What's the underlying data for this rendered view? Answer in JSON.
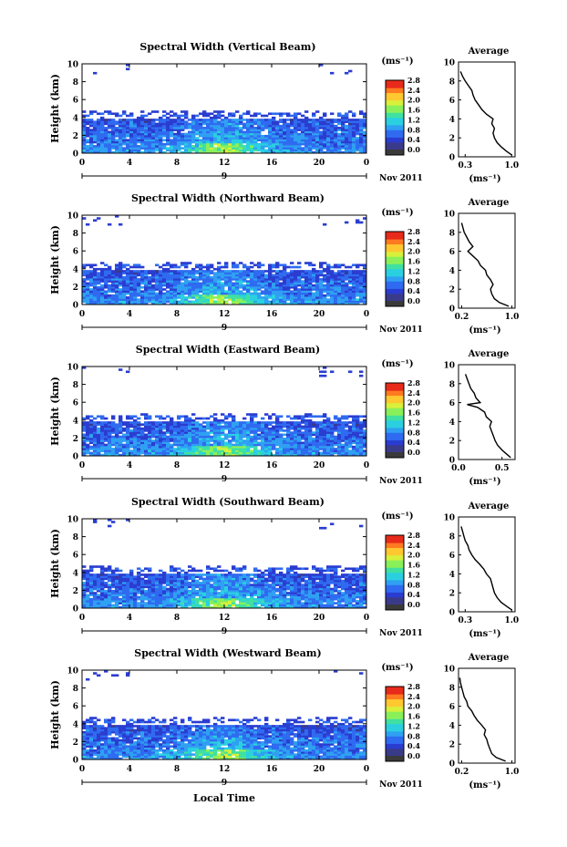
{
  "figure": {
    "xlabel": "Local Time",
    "day_label": "9",
    "date_label": "Nov 2011",
    "xticks": [
      "0",
      "4",
      "8",
      "12",
      "16",
      "20",
      "0"
    ],
    "yticks": [
      "0",
      "2",
      "4",
      "6",
      "8",
      "10"
    ],
    "ylabel": "Height (km)",
    "colorbar_unit": "(ms⁻¹)",
    "colorbar_ticks": [
      "0.0",
      "0.4",
      "0.8",
      "1.2",
      "1.6",
      "2.0",
      "2.4",
      "2.8"
    ],
    "colorbar_colors": [
      "#3a3a8a",
      "#2a3dd0",
      "#2f6bf0",
      "#2fa0f2",
      "#2ad0e0",
      "#40e0a0",
      "#8af05a",
      "#d8f03a",
      "#ffc830",
      "#ff7a20",
      "#e82a1a"
    ],
    "avg_title": "Average",
    "avg_xlabel": "(ms⁻¹)"
  },
  "chart_data": [
    {
      "type": "heatmap",
      "title": "Spectral Width (Vertical Beam)",
      "xlim": [
        0,
        24
      ],
      "ylim": [
        0,
        10
      ],
      "profile": {
        "title": "Average",
        "xticks": [
          "0.3",
          "1.0"
        ],
        "xlim": [
          0.2,
          1.05
        ],
        "heights": [
          0.2,
          0.6,
          1.0,
          1.5,
          2.0,
          2.5,
          3.0,
          3.5,
          4.0,
          4.5,
          5.0,
          5.5,
          6.0,
          6.5,
          7.0,
          7.5,
          8.0,
          8.5,
          9.0
        ],
        "values": [
          1.0,
          0.92,
          0.85,
          0.78,
          0.74,
          0.72,
          0.74,
          0.7,
          0.72,
          0.62,
          0.55,
          0.5,
          0.45,
          0.42,
          0.4,
          0.35,
          0.3,
          0.26,
          0.23
        ]
      }
    },
    {
      "type": "heatmap",
      "title": "Spectral Width (Northward Beam)",
      "xlim": [
        0,
        24
      ],
      "ylim": [
        0,
        10
      ],
      "profile": {
        "title": "Average",
        "xticks": [
          "0.2",
          "1.0"
        ],
        "xlim": [
          0.15,
          1.05
        ],
        "heights": [
          0.2,
          0.6,
          1.0,
          1.5,
          2.0,
          2.5,
          3.0,
          3.5,
          4.0,
          4.5,
          5.0,
          5.5,
          6.0,
          6.5,
          7.0,
          7.5,
          8.0,
          8.5,
          9.0
        ],
        "values": [
          0.95,
          0.8,
          0.72,
          0.68,
          0.66,
          0.7,
          0.66,
          0.6,
          0.58,
          0.5,
          0.46,
          0.38,
          0.3,
          0.38,
          0.32,
          0.28,
          0.24,
          0.22,
          0.2
        ]
      }
    },
    {
      "type": "heatmap",
      "title": "Spectral Width (Eastward Beam)",
      "xlim": [
        0,
        24
      ],
      "ylim": [
        0,
        10
      ],
      "profile": {
        "title": "Average",
        "xticks": [
          "0.0",
          "0.5"
        ],
        "xlim": [
          0.0,
          0.65
        ],
        "heights": [
          0.2,
          0.6,
          1.0,
          1.5,
          2.0,
          2.5,
          3.0,
          3.5,
          4.0,
          4.5,
          5.0,
          5.5,
          5.8,
          6.0,
          6.5,
          7.0,
          7.5,
          8.0,
          8.5,
          9.0
        ],
        "values": [
          0.6,
          0.55,
          0.5,
          0.45,
          0.42,
          0.4,
          0.38,
          0.36,
          0.38,
          0.32,
          0.3,
          0.22,
          0.1,
          0.25,
          0.2,
          0.18,
          0.14,
          0.12,
          0.1,
          0.08
        ]
      }
    },
    {
      "type": "heatmap",
      "title": "Spectral Width (Southward Beam)",
      "xlim": [
        0,
        24
      ],
      "ylim": [
        0,
        10
      ],
      "profile": {
        "title": "Average",
        "xticks": [
          "0.3",
          "1.0"
        ],
        "xlim": [
          0.2,
          1.05
        ],
        "heights": [
          0.2,
          0.6,
          1.0,
          1.5,
          2.0,
          2.5,
          3.0,
          3.5,
          4.0,
          4.5,
          5.0,
          5.5,
          6.0,
          6.5,
          7.0,
          7.5,
          8.0,
          8.5,
          9.0
        ],
        "values": [
          1.0,
          0.92,
          0.84,
          0.78,
          0.74,
          0.72,
          0.7,
          0.68,
          0.62,
          0.58,
          0.52,
          0.45,
          0.4,
          0.36,
          0.34,
          0.3,
          0.28,
          0.26,
          0.24
        ]
      }
    },
    {
      "type": "heatmap",
      "title": "Spectral Width (Westward Beam)",
      "xlim": [
        0,
        24
      ],
      "ylim": [
        0,
        10
      ],
      "profile": {
        "title": "Average",
        "xticks": [
          "0.2",
          "1.0"
        ],
        "xlim": [
          0.15,
          1.05
        ],
        "heights": [
          0.2,
          0.6,
          1.0,
          1.5,
          2.0,
          2.5,
          3.0,
          3.5,
          4.0,
          4.5,
          5.0,
          5.5,
          6.0,
          6.5,
          7.0,
          7.5,
          8.0,
          8.5,
          9.0
        ],
        "values": [
          0.9,
          0.75,
          0.68,
          0.65,
          0.62,
          0.6,
          0.56,
          0.58,
          0.52,
          0.45,
          0.4,
          0.36,
          0.3,
          0.28,
          0.24,
          0.22,
          0.2,
          0.18,
          0.17
        ]
      }
    }
  ]
}
